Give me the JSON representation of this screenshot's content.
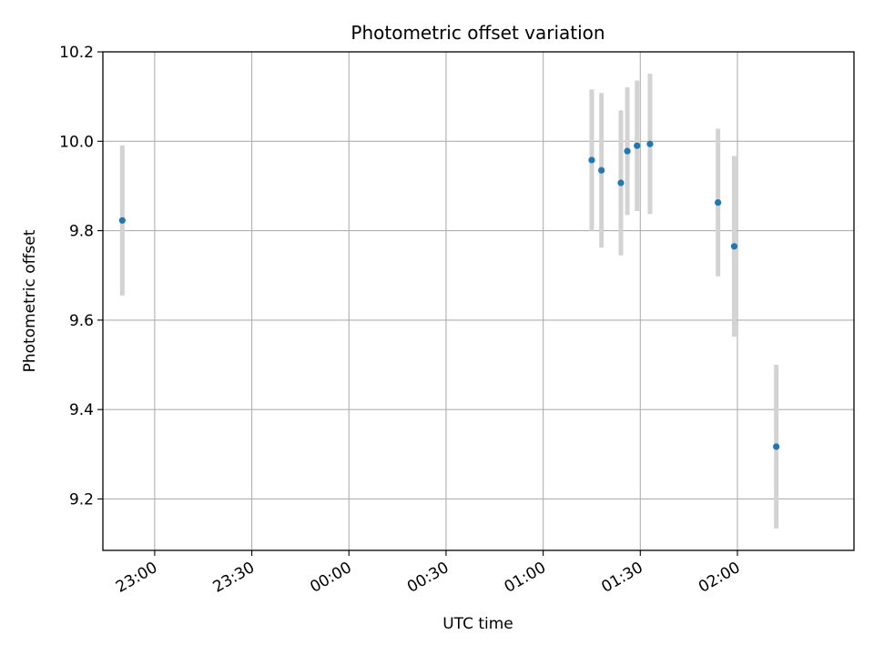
{
  "chart_data": {
    "type": "scatter",
    "title": "Photometric offset variation",
    "xlabel": "UTC time",
    "ylabel": "Photometric offset",
    "x_ticks": [
      "23:00",
      "23:30",
      "00:00",
      "00:30",
      "01:00",
      "01:30",
      "02:00"
    ],
    "y_ticks": [
      "9.2",
      "9.4",
      "9.6",
      "9.8",
      "10.0",
      "10.2"
    ],
    "xlim": [
      "22:44",
      "02:36"
    ],
    "ylim": [
      9.085,
      10.2
    ],
    "grid": true,
    "points": [
      {
        "x": "22:50",
        "y": 9.823,
        "err": 0.168
      },
      {
        "x": "01:15",
        "y": 9.958,
        "err": 0.158
      },
      {
        "x": "01:18",
        "y": 9.935,
        "err": 0.173
      },
      {
        "x": "01:24",
        "y": 9.907,
        "err": 0.162
      },
      {
        "x": "01:26",
        "y": 9.978,
        "err": 0.143
      },
      {
        "x": "01:29",
        "y": 9.99,
        "err": 0.146
      },
      {
        "x": "01:33",
        "y": 9.994,
        "err": 0.157
      },
      {
        "x": "01:54",
        "y": 9.863,
        "err": 0.165
      },
      {
        "x": "01:59",
        "y": 9.765,
        "err": 0.202
      },
      {
        "x": "02:12",
        "y": 9.317,
        "err": 0.183
      }
    ],
    "marker_color": "#1f77b4",
    "errorbar_color": "#d3d3d3",
    "grid_color": "#b0b0b0"
  }
}
